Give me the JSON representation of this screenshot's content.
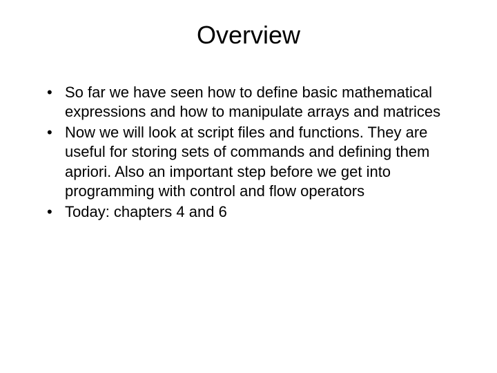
{
  "slide": {
    "title": "Overview",
    "bullets": [
      "So far we have seen how to define basic mathematical expressions and how to manipulate arrays and matrices",
      "Now we will look at script files and functions. They are useful for storing sets of commands and defining them apriori. Also an important step before we get into programming with control and flow operators",
      "Today: chapters 4 and 6"
    ],
    "title_fontsize": 36,
    "body_fontsize": 22,
    "background_color": "#ffffff",
    "text_color": "#000000"
  }
}
